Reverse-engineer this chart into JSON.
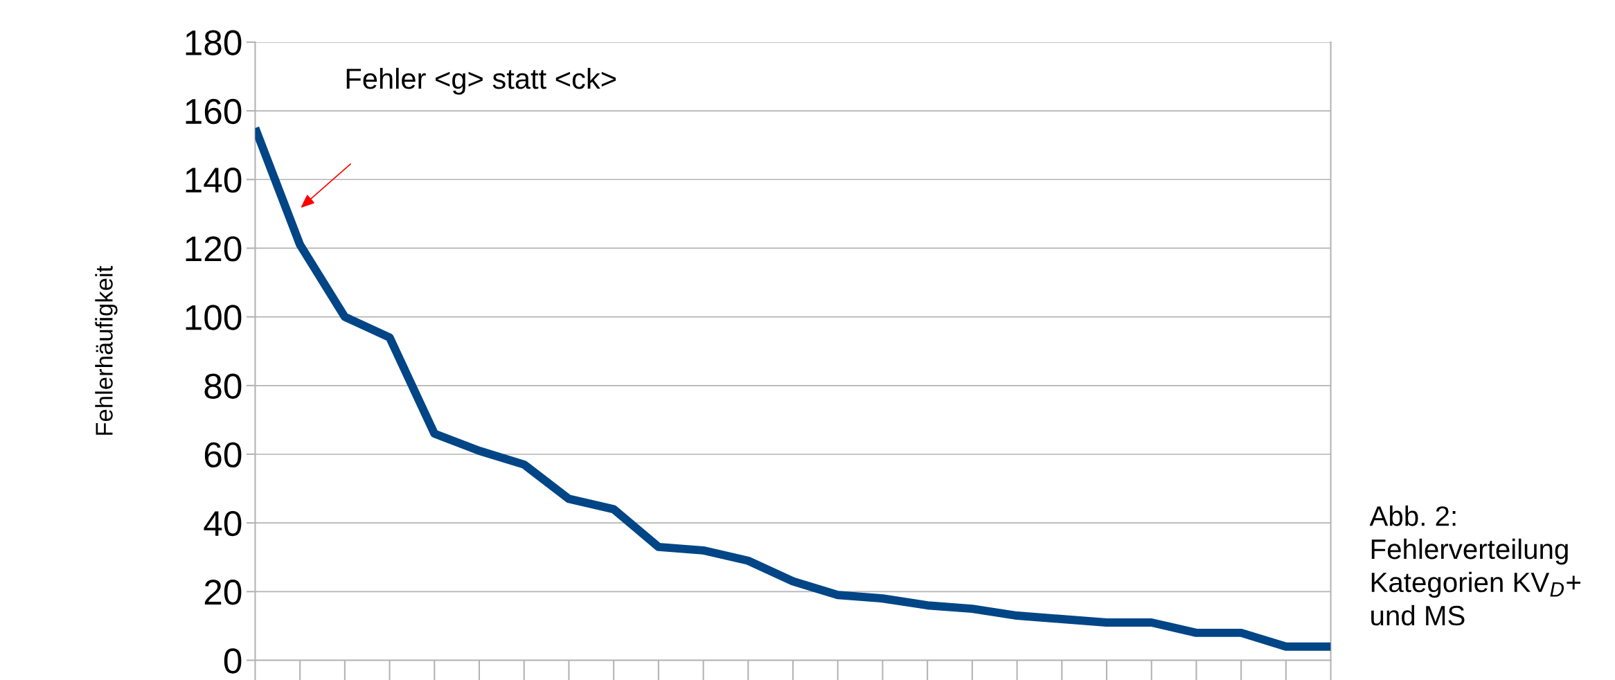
{
  "chart_data": {
    "type": "line",
    "ylabel": "Fehlerhäufigkeit",
    "categories": [
      null,
      null,
      null,
      null,
      null,
      null,
      null,
      null,
      null,
      null,
      null,
      null,
      null,
      null,
      null,
      null,
      null,
      null,
      null,
      null,
      null,
      null,
      null,
      null,
      null
    ],
    "series": [
      {
        "color": "#004586",
        "values": [
          155,
          121,
          100,
          94,
          66,
          61,
          57,
          47,
          44,
          33,
          32,
          29,
          23,
          19,
          18,
          16,
          15,
          13,
          12,
          11,
          11,
          8,
          8,
          4,
          4
        ]
      }
    ],
    "ylim": [
      0,
      180
    ],
    "yticks": [
      0,
      20,
      40,
      60,
      80,
      100,
      120,
      140,
      160,
      180
    ],
    "grid": "y",
    "marker": "none",
    "line_style": "solid",
    "annotations": [
      "Fehler <g> statt <ck>",
      "Abb. 2:\nFehlerverteilung\nKategorien KV$_{D}$+\nund MS"
    ]
  }
}
